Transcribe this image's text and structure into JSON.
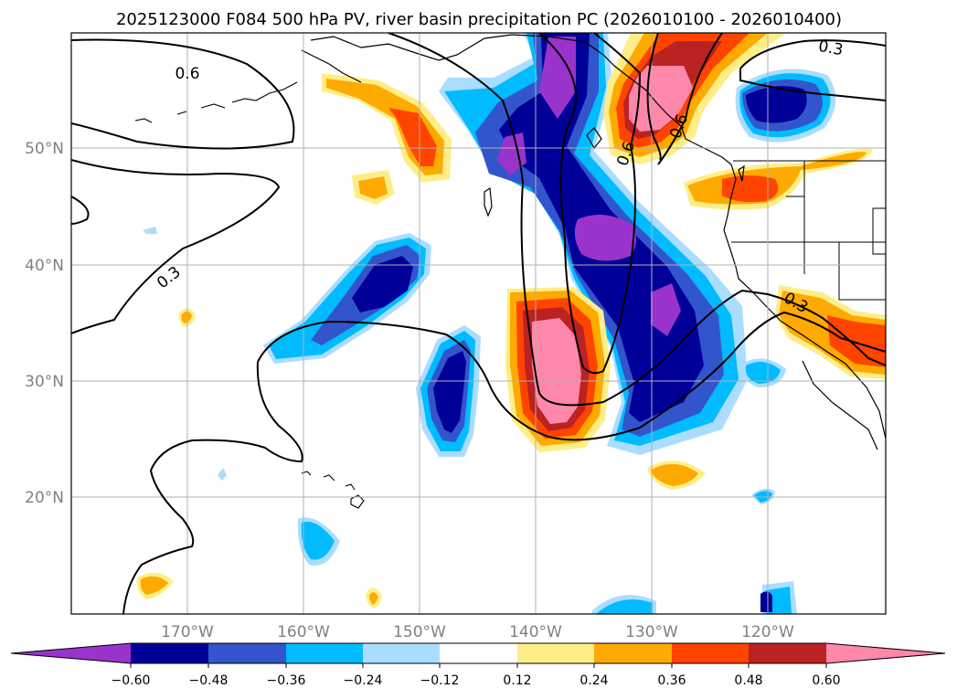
{
  "title": "2025123000 F084 500 hPa PV, river basin precipitation PC (2026010100 - 2026010400)",
  "map": {
    "lat_labels": [
      "50°N",
      "40°N",
      "30°N",
      "20°N"
    ],
    "lon_labels": [
      "170°W",
      "160°W",
      "150°W",
      "140°W",
      "130°W",
      "120°W"
    ],
    "contour_labels": [
      "0.6",
      "0.3",
      "0.3",
      "0.3",
      "0.6",
      "0.6"
    ]
  },
  "colorbar": {
    "colors": [
      "#9933cc",
      "#000099",
      "#3355cc",
      "#00bbff",
      "#aaddff",
      "#ffffff",
      "#ffee88",
      "#ffaa00",
      "#ff4400",
      "#bb2222",
      "#ff88aa"
    ],
    "tick_labels": [
      "−0.60",
      "−0.48",
      "−0.36",
      "−0.24",
      "−0.12",
      "0.12",
      "0.24",
      "0.36",
      "0.48",
      "0.60"
    ]
  }
}
